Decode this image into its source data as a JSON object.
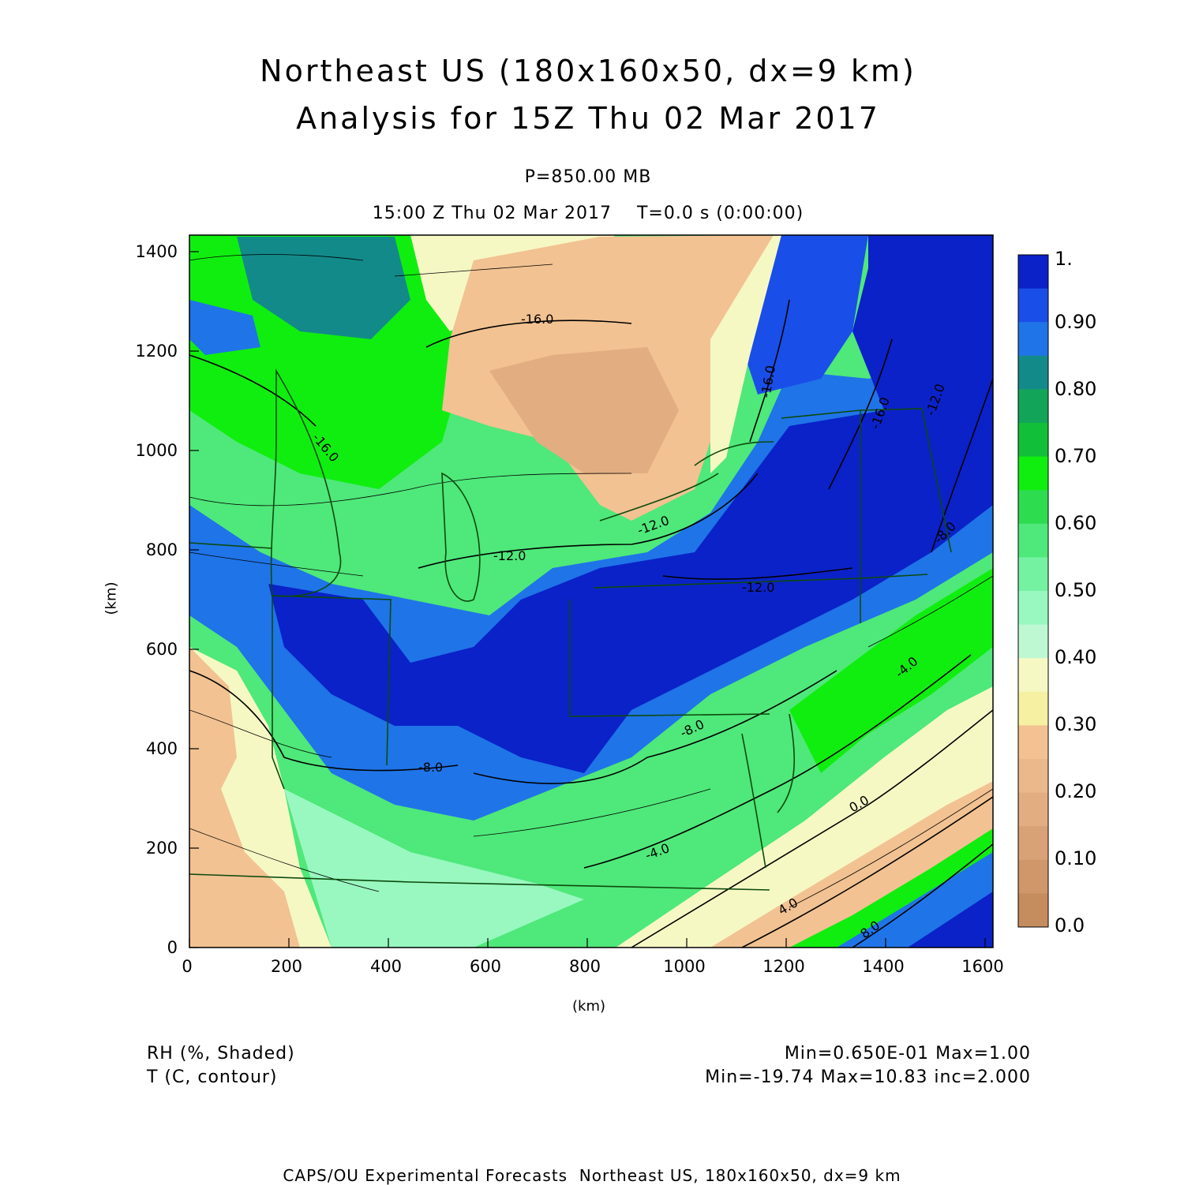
{
  "title": {
    "line1": "Northeast US (180x160x50, dx=9 km)",
    "line2": "Analysis for 15Z Thu 02 Mar 2017"
  },
  "subtitle": {
    "pressure": "P=850.00 MB",
    "time": "15:00 Z Thu 02 Mar 2017    T=0.0 s (0:00:00)"
  },
  "axes": {
    "xlabel": "(km)",
    "ylabel": "(km)",
    "x_ticks": [
      "0",
      "200",
      "400",
      "600",
      "800",
      "1000",
      "1200",
      "1400",
      "1600"
    ],
    "y_ticks": [
      "0",
      "200",
      "400",
      "600",
      "800",
      "1000",
      "1200",
      "1400"
    ],
    "xlim": [
      0,
      1620
    ],
    "ylim": [
      0,
      1435
    ]
  },
  "colorbar": {
    "labels": [
      "1.",
      "0.90",
      "0.80",
      "0.70",
      "0.60",
      "0.50",
      "0.40",
      "0.30",
      "0.20",
      "0.10",
      "0.0"
    ],
    "colors": [
      "#0a22c8",
      "#1a4ee8",
      "#1f74e8",
      "#138a8a",
      "#12a55a",
      "#12bf38",
      "#10ee10",
      "#2edc50",
      "#4fe87a",
      "#74f2a2",
      "#98f8c0",
      "#bdf8d2",
      "#f6f8c4",
      "#f6f0a2",
      "#f2c292",
      "#eab88a",
      "#e2ad80",
      "#d9a276",
      "#cf976a",
      "#c58c5e"
    ]
  },
  "contour_labels": [
    "-16.0",
    "-16.0",
    "-16.0",
    "-16.0",
    "-12.0",
    "-12.0",
    "-12.0",
    "-12.0",
    "-8.0",
    "-8.0",
    "-8.0",
    "-4.0",
    "-4.0",
    "0.0",
    "4.0",
    "8.0"
  ],
  "legend": {
    "left1": "RH (%, Shaded)",
    "left2": "T (C, contour)",
    "right1": "Min=0.650E-01 Max=1.00",
    "right2": "Min=-19.74 Max=10.83 inc=2.000"
  },
  "footer": "CAPS/OU Experimental Forecasts  Northeast US, 180x160x50, dx=9 km"
}
